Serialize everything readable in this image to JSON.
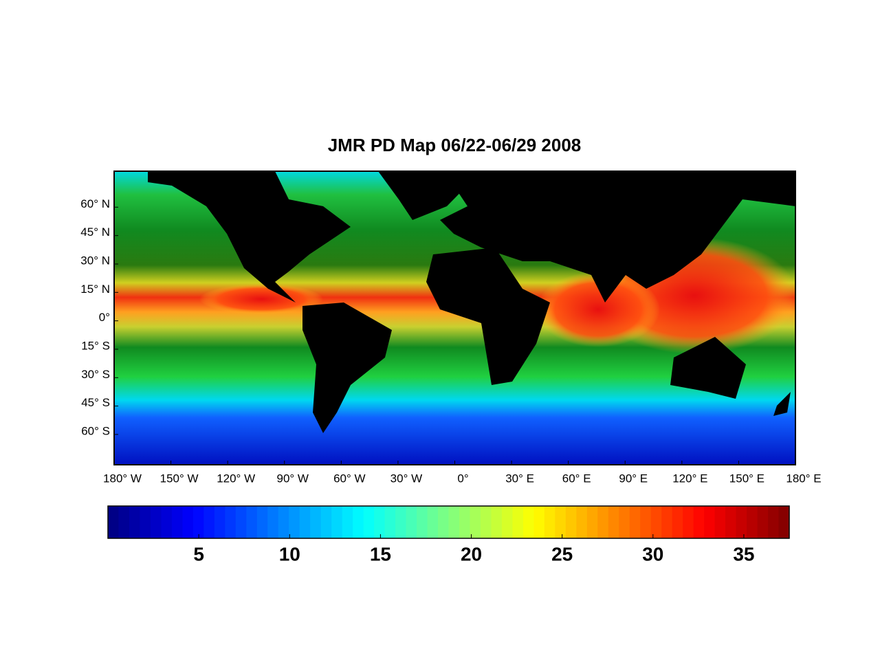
{
  "chart_data": {
    "type": "map",
    "title": "JMR PD Map 06/22-06/29 2008",
    "xlim": [
      -180,
      180
    ],
    "xticks": [
      {
        "value": -180,
        "label": "180° W"
      },
      {
        "value": -150,
        "label": "150° W"
      },
      {
        "value": -120,
        "label": "120° W"
      },
      {
        "value": -90,
        "label": "90° W"
      },
      {
        "value": -60,
        "label": "60° W"
      },
      {
        "value": -30,
        "label": "30° W"
      },
      {
        "value": 0,
        "label": "0°"
      },
      {
        "value": 30,
        "label": "30° E"
      },
      {
        "value": 60,
        "label": "60° E"
      },
      {
        "value": 90,
        "label": "90° E"
      },
      {
        "value": 120,
        "label": "120° E"
      },
      {
        "value": 150,
        "label": "150° E"
      },
      {
        "value": 180,
        "label": "180° E"
      }
    ],
    "ylim": [
      -76,
      79
    ],
    "yticks": [
      {
        "value": 60,
        "label": "60° N"
      },
      {
        "value": 45,
        "label": "45° N"
      },
      {
        "value": 30,
        "label": "30° N"
      },
      {
        "value": 15,
        "label": "15° N"
      },
      {
        "value": 0,
        "label": "0°"
      },
      {
        "value": -15,
        "label": "15° S"
      },
      {
        "value": -30,
        "label": "30° S"
      },
      {
        "value": -45,
        "label": "45° S"
      },
      {
        "value": -60,
        "label": "60° S"
      }
    ],
    "colorbar": {
      "colormap": "jet",
      "clim": [
        0,
        37.5
      ],
      "ticks": [
        5,
        10,
        15,
        20,
        25,
        30,
        35
      ]
    }
  }
}
